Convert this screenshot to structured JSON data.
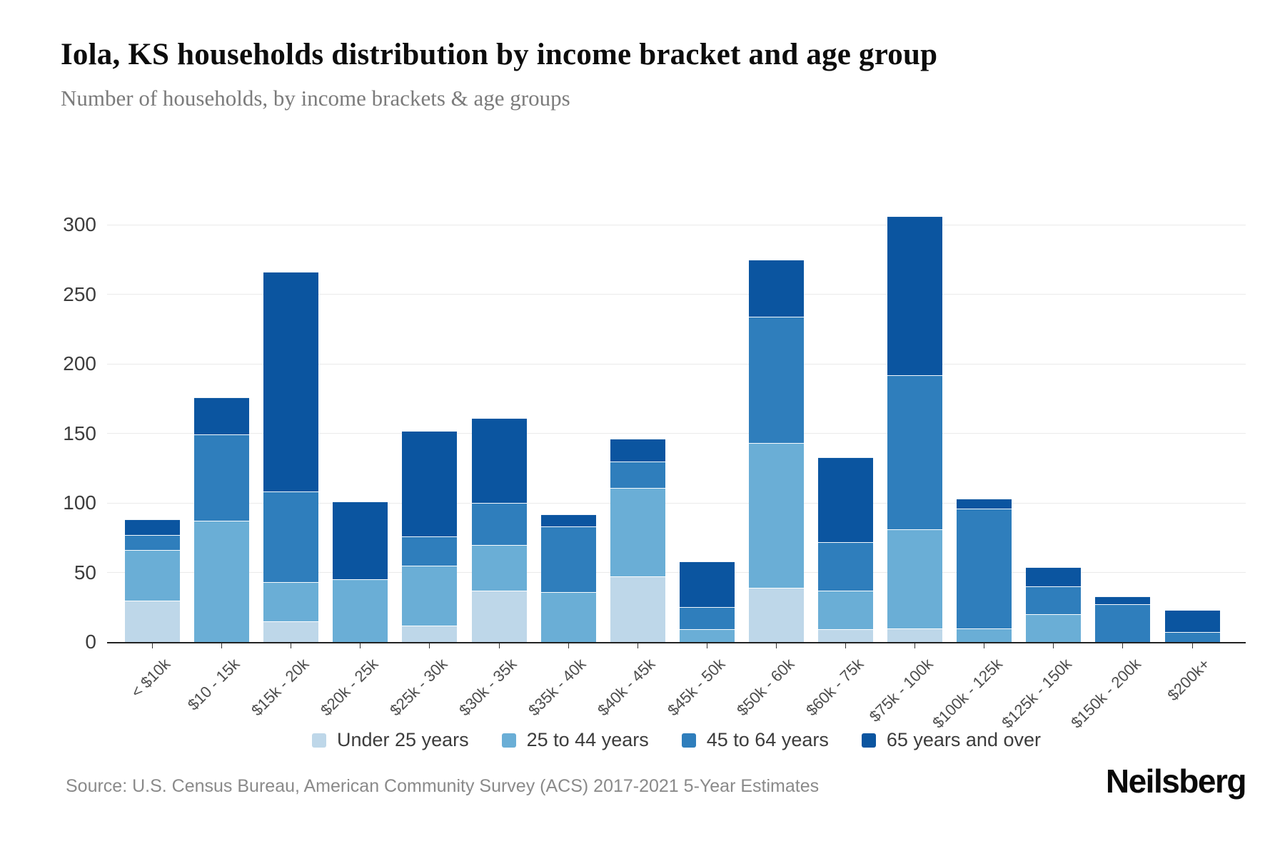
{
  "header": {
    "title": "Iola, KS households distribution by income bracket and age group",
    "subtitle": "Number of households, by income brackets & age groups"
  },
  "chart_data": {
    "type": "bar",
    "stacked": true,
    "title": "Iola, KS households distribution by income bracket and age group",
    "subtitle": "Number of households, by income brackets & age groups",
    "xlabel": "",
    "ylabel": "",
    "ylim": [
      0,
      300
    ],
    "yticks": [
      0,
      50,
      100,
      150,
      200,
      250,
      300
    ],
    "grid": "horizontal",
    "legend_position": "bottom",
    "categories": [
      "< $10k",
      "$10 - 15k",
      "$15k - 20k",
      "$20k - 25k",
      "$25k - 30k",
      "$30k - 35k",
      "$35k - 40k",
      "$40k - 45k",
      "$45k - 50k",
      "$50k - 60k",
      "$60k - 75k",
      "$75k - 100k",
      "$100k - 125k",
      "$125k - 150k",
      "$150k - 200k",
      "$200k+"
    ],
    "series": [
      {
        "name": "Under 25 years",
        "color": "#bed7e9",
        "values": [
          30,
          0,
          15,
          0,
          12,
          37,
          0,
          47,
          0,
          39,
          9,
          10,
          0,
          0,
          0,
          0
        ]
      },
      {
        "name": "25 to 44 years",
        "color": "#6aaed6",
        "values": [
          36,
          87,
          28,
          45,
          43,
          33,
          36,
          64,
          9,
          104,
          28,
          71,
          10,
          20,
          0,
          0
        ]
      },
      {
        "name": "45 to 64 years",
        "color": "#2f7ebc",
        "values": [
          11,
          62,
          65,
          0,
          21,
          30,
          47,
          19,
          16,
          91,
          35,
          111,
          86,
          20,
          27,
          7
        ]
      },
      {
        "name": "65 years and over",
        "color": "#0b55a0",
        "values": [
          11,
          27,
          158,
          56,
          76,
          61,
          9,
          16,
          33,
          41,
          61,
          114,
          7,
          14,
          6,
          16
        ]
      }
    ],
    "bar_totals": [
      88,
      176,
      266,
      101,
      152,
      161,
      92,
      146,
      58,
      275,
      133,
      306,
      103,
      54,
      33,
      23
    ]
  },
  "footer": {
    "source": "Source: U.S. Census Bureau, American Community Survey (ACS) 2017-2021 5-Year Estimates",
    "brand": "Neilsberg"
  }
}
